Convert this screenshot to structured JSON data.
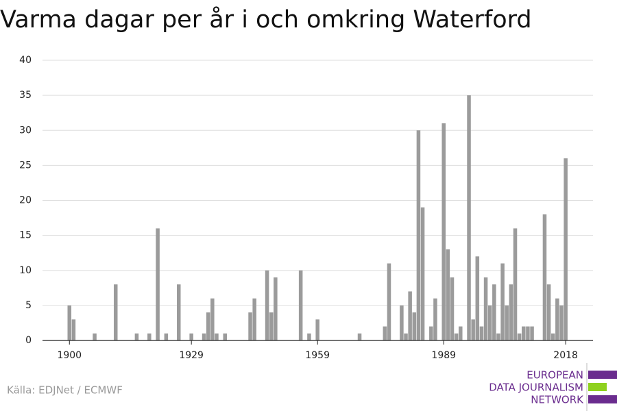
{
  "chart_data": {
    "type": "bar",
    "title": "Varma dagar per år i och omkring Waterford",
    "x": [
      1900,
      1901,
      1906,
      1911,
      1916,
      1919,
      1921,
      1923,
      1926,
      1929,
      1932,
      1933,
      1934,
      1935,
      1937,
      1943,
      1944,
      1947,
      1948,
      1949,
      1955,
      1957,
      1959,
      1969,
      1975,
      1976,
      1979,
      1980,
      1981,
      1982,
      1983,
      1984,
      1986,
      1987,
      1989,
      1990,
      1991,
      1992,
      1993,
      1995,
      1996,
      1997,
      1998,
      1999,
      2000,
      2001,
      2002,
      2003,
      2004,
      2005,
      2006,
      2007,
      2008,
      2009,
      2010,
      2013,
      2014,
      2015,
      2016,
      2017,
      2018
    ],
    "values": [
      5,
      3,
      1,
      8,
      1,
      1,
      16,
      1,
      8,
      1,
      1,
      4,
      6,
      1,
      1,
      4,
      6,
      10,
      4,
      9,
      10,
      1,
      3,
      1,
      2,
      11,
      5,
      1,
      7,
      4,
      30,
      19,
      2,
      6,
      31,
      13,
      9,
      1,
      2,
      35,
      3,
      12,
      2,
      9,
      5,
      8,
      1,
      11,
      5,
      8,
      16,
      1,
      2,
      2,
      2,
      18,
      8,
      1,
      6,
      5,
      26
    ],
    "color": "#9b9b9b",
    "xlim": [
      1893.6,
      2024.5
    ],
    "xticks": [
      1900,
      1929,
      1959,
      1989,
      2018
    ],
    "ylim": [
      0,
      40
    ],
    "yticks": [
      0,
      5,
      10,
      15,
      20,
      25,
      30,
      35,
      40
    ],
    "grid": true,
    "source": "Källa: EDJNet / ECMWF",
    "logo": [
      "EUROPEAN",
      "DATA JOURNALISM",
      "NETWORK"
    ]
  }
}
